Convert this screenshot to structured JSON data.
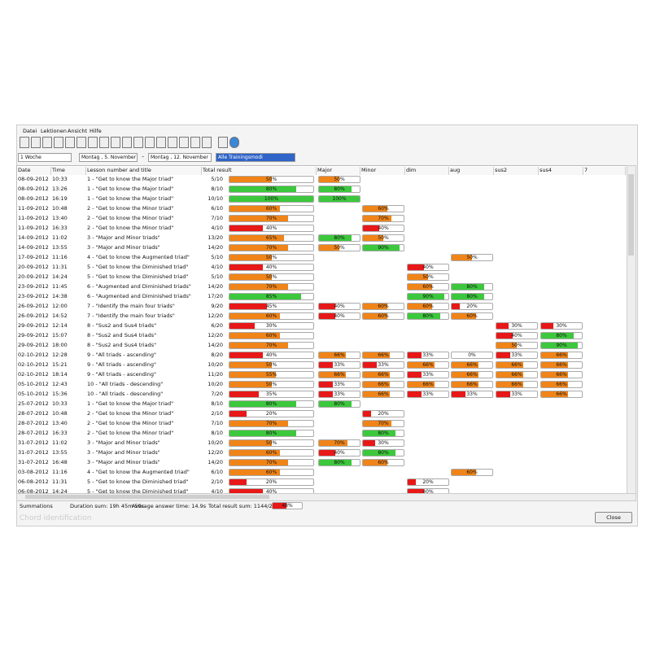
{
  "menu": [
    "Datei",
    "Lektionen",
    "Ansicht",
    "Hilfe"
  ],
  "filters": {
    "period": "1 Woche",
    "from": "Montag   , 5. November",
    "to": "Montag   , 12. November",
    "mode": "Alle Trainingsmodi"
  },
  "table": {
    "columns": [
      "Date",
      "Time",
      "Lesson number and title",
      "Total result",
      "Major",
      "Minor",
      "dim",
      "aug",
      "sus2",
      "sus4",
      "7"
    ],
    "rows": [
      {
        "date": "08-09-2012",
        "time": "10:33",
        "lesson": "1 - \"Get to know the Major triad\"",
        "total": "5/10",
        "result": {
          "value": 50,
          "label": "50%"
        },
        "chords": [
          {
            "value": 50,
            "label": "50%"
          },
          null,
          null,
          null,
          null,
          null,
          null
        ]
      },
      {
        "date": "08-09-2012",
        "time": "13:26",
        "lesson": "1 - \"Get to know the Major triad\"",
        "total": "8/10",
        "result": {
          "value": 80,
          "label": "80%"
        },
        "chords": [
          {
            "value": 80,
            "label": "80%"
          },
          null,
          null,
          null,
          null,
          null,
          null
        ]
      },
      {
        "date": "08-09-2012",
        "time": "16:19",
        "lesson": "1 - \"Get to know the Major triad\"",
        "total": "10/10",
        "result": {
          "value": 100,
          "label": "100%"
        },
        "chords": [
          {
            "value": 100,
            "label": "100%"
          },
          null,
          null,
          null,
          null,
          null,
          null
        ]
      },
      {
        "date": "11-09-2012",
        "time": "10:48",
        "lesson": "2 - \"Get to know the Minor triad\"",
        "total": "6/10",
        "result": {
          "value": 60,
          "label": "60%"
        },
        "chords": [
          null,
          {
            "value": 60,
            "label": "60%"
          },
          null,
          null,
          null,
          null,
          null
        ]
      },
      {
        "date": "11-09-2012",
        "time": "13:40",
        "lesson": "2 - \"Get to know the Minor triad\"",
        "total": "7/10",
        "result": {
          "value": 70,
          "label": "70%"
        },
        "chords": [
          null,
          {
            "value": 70,
            "label": "70%"
          },
          null,
          null,
          null,
          null,
          null
        ]
      },
      {
        "date": "11-09-2012",
        "time": "16:33",
        "lesson": "2 - \"Get to know the Minor triad\"",
        "total": "4/10",
        "result": {
          "value": 40,
          "label": "40%"
        },
        "chords": [
          null,
          {
            "value": 40,
            "label": "40%"
          },
          null,
          null,
          null,
          null,
          null
        ]
      },
      {
        "date": "14-09-2012",
        "time": "11:02",
        "lesson": "3 - \"Major and Minor triads\"",
        "total": "13/20",
        "result": {
          "value": 65,
          "label": "65%"
        },
        "chords": [
          {
            "value": 80,
            "label": "80%"
          },
          {
            "value": 50,
            "label": "50%"
          },
          null,
          null,
          null,
          null,
          null
        ]
      },
      {
        "date": "14-09-2012",
        "time": "13:55",
        "lesson": "3 - \"Major and Minor triads\"",
        "total": "14/20",
        "result": {
          "value": 70,
          "label": "70%"
        },
        "chords": [
          {
            "value": 50,
            "label": "50%"
          },
          {
            "value": 90,
            "label": "90%"
          },
          null,
          null,
          null,
          null,
          null
        ]
      },
      {
        "date": "17-09-2012",
        "time": "11:16",
        "lesson": "4 - \"Get to know the Augmented triad\"",
        "total": "5/10",
        "result": {
          "value": 50,
          "label": "50%"
        },
        "chords": [
          null,
          null,
          null,
          {
            "value": 50,
            "label": "50%"
          },
          null,
          null,
          null
        ]
      },
      {
        "date": "20-09-2012",
        "time": "11:31",
        "lesson": "5 - \"Get to know the Diminished triad\"",
        "total": "4/10",
        "result": {
          "value": 40,
          "label": "40%"
        },
        "chords": [
          null,
          null,
          {
            "value": 40,
            "label": "40%"
          },
          null,
          null,
          null,
          null
        ]
      },
      {
        "date": "20-09-2012",
        "time": "14:24",
        "lesson": "5 - \"Get to know the Diminished triad\"",
        "total": "5/10",
        "result": {
          "value": 50,
          "label": "50%"
        },
        "chords": [
          null,
          null,
          {
            "value": 50,
            "label": "50%"
          },
          null,
          null,
          null,
          null
        ]
      },
      {
        "date": "23-09-2012",
        "time": "11:45",
        "lesson": "6 - \"Augmented and Diminished triads\"",
        "total": "14/20",
        "result": {
          "value": 70,
          "label": "70%"
        },
        "chords": [
          null,
          null,
          {
            "value": 60,
            "label": "60%"
          },
          {
            "value": 80,
            "label": "80%"
          },
          null,
          null,
          null
        ]
      },
      {
        "date": "23-09-2012",
        "time": "14:38",
        "lesson": "6 - \"Augmented and Diminished triads\"",
        "total": "17/20",
        "result": {
          "value": 85,
          "label": "85%"
        },
        "chords": [
          null,
          null,
          {
            "value": 90,
            "label": "90%"
          },
          {
            "value": 80,
            "label": "80%"
          },
          null,
          null,
          null
        ]
      },
      {
        "date": "26-09-2012",
        "time": "12:00",
        "lesson": "7 - \"Identify the main four triads\"",
        "total": "9/20",
        "result": {
          "value": 45,
          "label": "45%"
        },
        "chords": [
          {
            "value": 40,
            "label": "40%"
          },
          {
            "value": 60,
            "label": "60%"
          },
          {
            "value": 60,
            "label": "60%"
          },
          {
            "value": 20,
            "label": "20%"
          },
          null,
          null,
          null
        ]
      },
      {
        "date": "26-09-2012",
        "time": "14:52",
        "lesson": "7 - \"Identify the main four triads\"",
        "total": "12/20",
        "result": {
          "value": 60,
          "label": "60%"
        },
        "chords": [
          {
            "value": 40,
            "label": "40%"
          },
          {
            "value": 60,
            "label": "60%"
          },
          {
            "value": 80,
            "label": "80%"
          },
          {
            "value": 60,
            "label": "60%"
          },
          null,
          null,
          null
        ]
      },
      {
        "date": "29-09-2012",
        "time": "12:14",
        "lesson": "8 - \"Sus2 and Sus4 triads\"",
        "total": "6/20",
        "result": {
          "value": 30,
          "label": "30%"
        },
        "chords": [
          null,
          null,
          null,
          null,
          {
            "value": 30,
            "label": "30%"
          },
          {
            "value": 30,
            "label": "30%"
          },
          null
        ]
      },
      {
        "date": "29-09-2012",
        "time": "15:07",
        "lesson": "8 - \"Sus2 and Sus4 triads\"",
        "total": "12/20",
        "result": {
          "value": 60,
          "label": "60%"
        },
        "chords": [
          null,
          null,
          null,
          null,
          {
            "value": 40,
            "label": "40%"
          },
          {
            "value": 80,
            "label": "80%"
          },
          null
        ]
      },
      {
        "date": "29-09-2012",
        "time": "18:00",
        "lesson": "8 - \"Sus2 and Sus4 triads\"",
        "total": "14/20",
        "result": {
          "value": 70,
          "label": "70%"
        },
        "chords": [
          null,
          null,
          null,
          null,
          {
            "value": 50,
            "label": "50%"
          },
          {
            "value": 90,
            "label": "90%"
          },
          null
        ]
      },
      {
        "date": "02-10-2012",
        "time": "12:28",
        "lesson": "9 - \"All triads - ascending\"",
        "total": "8/20",
        "result": {
          "value": 40,
          "label": "40%"
        },
        "chords": [
          {
            "value": 66,
            "label": "66%"
          },
          {
            "value": 66,
            "label": "66%"
          },
          {
            "value": 33,
            "label": "33%"
          },
          {
            "value": 0,
            "label": "0%"
          },
          {
            "value": 33,
            "label": "33%"
          },
          {
            "value": 66,
            "label": "66%"
          },
          null
        ]
      },
      {
        "date": "02-10-2012",
        "time": "15:21",
        "lesson": "9 - \"All triads - ascending\"",
        "total": "10/20",
        "result": {
          "value": 50,
          "label": "50%"
        },
        "chords": [
          {
            "value": 33,
            "label": "33%"
          },
          {
            "value": 33,
            "label": "33%"
          },
          {
            "value": 66,
            "label": "66%"
          },
          {
            "value": 66,
            "label": "66%"
          },
          {
            "value": 66,
            "label": "66%"
          },
          {
            "value": 66,
            "label": "66%"
          },
          null
        ]
      },
      {
        "date": "02-10-2012",
        "time": "18:14",
        "lesson": "9 - \"All triads - ascending\"",
        "total": "11/20",
        "result": {
          "value": 55,
          "label": "55%"
        },
        "chords": [
          {
            "value": 66,
            "label": "66%"
          },
          {
            "value": 66,
            "label": "66%"
          },
          {
            "value": 33,
            "label": "33%"
          },
          {
            "value": 66,
            "label": "66%"
          },
          {
            "value": 66,
            "label": "66%"
          },
          {
            "value": 66,
            "label": "66%"
          },
          null
        ]
      },
      {
        "date": "05-10-2012",
        "time": "12:43",
        "lesson": "10 - \"All triads - descending\"",
        "total": "10/20",
        "result": {
          "value": 50,
          "label": "50%"
        },
        "chords": [
          {
            "value": 33,
            "label": "33%"
          },
          {
            "value": 66,
            "label": "66%"
          },
          {
            "value": 66,
            "label": "66%"
          },
          {
            "value": 66,
            "label": "66%"
          },
          {
            "value": 66,
            "label": "66%"
          },
          {
            "value": 66,
            "label": "66%"
          },
          null
        ]
      },
      {
        "date": "05-10-2012",
        "time": "15:36",
        "lesson": "10 - \"All triads - descending\"",
        "total": "7/20",
        "result": {
          "value": 35,
          "label": "35%"
        },
        "chords": [
          {
            "value": 33,
            "label": "33%"
          },
          {
            "value": 66,
            "label": "66%"
          },
          {
            "value": 33,
            "label": "33%"
          },
          {
            "value": 33,
            "label": "33%"
          },
          {
            "value": 33,
            "label": "33%"
          },
          {
            "value": 66,
            "label": "66%"
          },
          null
        ]
      },
      {
        "date": "25-07-2012",
        "time": "10:33",
        "lesson": "1 - \"Get to know the Major triad\"",
        "total": "8/10",
        "result": {
          "value": 80,
          "label": "80%"
        },
        "chords": [
          {
            "value": 80,
            "label": "80%"
          },
          null,
          null,
          null,
          null,
          null,
          null
        ]
      },
      {
        "date": "28-07-2012",
        "time": "10:48",
        "lesson": "2 - \"Get to know the Minor triad\"",
        "total": "2/10",
        "result": {
          "value": 20,
          "label": "20%"
        },
        "chords": [
          null,
          {
            "value": 20,
            "label": "20%"
          },
          null,
          null,
          null,
          null,
          null
        ]
      },
      {
        "date": "28-07-2012",
        "time": "13:40",
        "lesson": "2 - \"Get to know the Minor triad\"",
        "total": "7/10",
        "result": {
          "value": 70,
          "label": "70%"
        },
        "chords": [
          null,
          {
            "value": 70,
            "label": "70%"
          },
          null,
          null,
          null,
          null,
          null
        ]
      },
      {
        "date": "28-07-2012",
        "time": "16:33",
        "lesson": "2 - \"Get to know the Minor triad\"",
        "total": "8/10",
        "result": {
          "value": 80,
          "label": "80%"
        },
        "chords": [
          null,
          {
            "value": 80,
            "label": "80%"
          },
          null,
          null,
          null,
          null,
          null
        ]
      },
      {
        "date": "31-07-2012",
        "time": "11:02",
        "lesson": "3 - \"Major and Minor triads\"",
        "total": "10/20",
        "result": {
          "value": 50,
          "label": "50%"
        },
        "chords": [
          {
            "value": 70,
            "label": "70%"
          },
          {
            "value": 30,
            "label": "30%"
          },
          null,
          null,
          null,
          null,
          null
        ]
      },
      {
        "date": "31-07-2012",
        "time": "13:55",
        "lesson": "3 - \"Major and Minor triads\"",
        "total": "12/20",
        "result": {
          "value": 60,
          "label": "60%"
        },
        "chords": [
          {
            "value": 40,
            "label": "40%"
          },
          {
            "value": 80,
            "label": "80%"
          },
          null,
          null,
          null,
          null,
          null
        ]
      },
      {
        "date": "31-07-2012",
        "time": "16:48",
        "lesson": "3 - \"Major and Minor triads\"",
        "total": "14/20",
        "result": {
          "value": 70,
          "label": "70%"
        },
        "chords": [
          {
            "value": 80,
            "label": "80%"
          },
          {
            "value": 60,
            "label": "60%"
          },
          null,
          null,
          null,
          null,
          null
        ]
      },
      {
        "date": "03-08-2012",
        "time": "11:16",
        "lesson": "4 - \"Get to know the Augmented triad\"",
        "total": "6/10",
        "result": {
          "value": 60,
          "label": "60%"
        },
        "chords": [
          null,
          null,
          null,
          {
            "value": 60,
            "label": "60%"
          },
          null,
          null,
          null
        ]
      },
      {
        "date": "06-08-2012",
        "time": "11:31",
        "lesson": "5 - \"Get to know the Diminished triad\"",
        "total": "2/10",
        "result": {
          "value": 20,
          "label": "20%"
        },
        "chords": [
          null,
          null,
          {
            "value": 20,
            "label": "20%"
          },
          null,
          null,
          null,
          null
        ]
      },
      {
        "date": "06-08-2012",
        "time": "14:24",
        "lesson": "5 - \"Get to know the Diminished triad\"",
        "total": "4/10",
        "result": {
          "value": 40,
          "label": "40%"
        },
        "chords": [
          null,
          null,
          {
            "value": 40,
            "label": "40%"
          },
          null,
          null,
          null,
          null
        ]
      }
    ]
  },
  "summary": {
    "title": "Summations",
    "duration": "Duration sum: 19h 45m 59s",
    "average": "Average answer time: 14.9s",
    "total": "Total result sum: 1144/2380",
    "result": {
      "value": 48,
      "label": "48%"
    }
  },
  "status": "Chord identification",
  "close": "Close"
}
